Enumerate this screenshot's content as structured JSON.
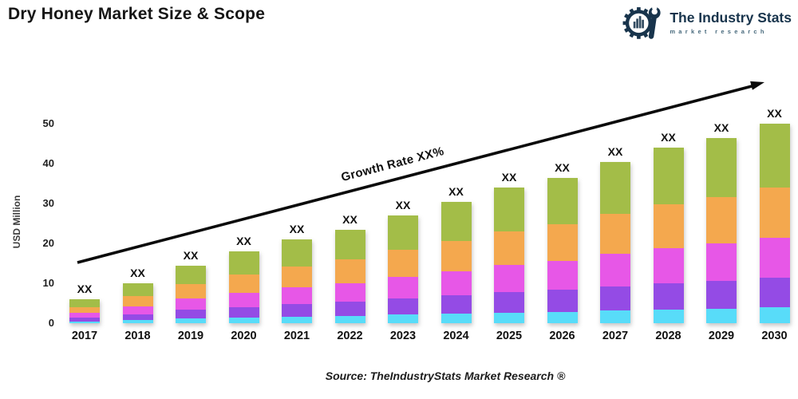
{
  "header": {
    "title": "Dry Honey Market Size & Scope",
    "logo": {
      "brand": "The Industry Stats",
      "tagline": "market research",
      "brand_color": "#18344c"
    }
  },
  "chart_data": {
    "type": "bar",
    "stacked": true,
    "title": "Dry Honey Market Size & Scope",
    "xlabel": "",
    "ylabel": "USD Million",
    "ylim": [
      0,
      50
    ],
    "yticks": [
      0,
      10,
      20,
      30,
      40,
      50
    ],
    "grid": false,
    "legend": "none",
    "bar_value_label": "XX",
    "annotation": "Growth Rate XX%",
    "categories": [
      "2017",
      "2018",
      "2019",
      "2020",
      "2021",
      "2022",
      "2023",
      "2024",
      "2025",
      "2026",
      "2027",
      "2028",
      "2029",
      "2030"
    ],
    "series": [
      {
        "name": "cyan",
        "color": "#58dcf9",
        "values": [
          0.5,
          0.8,
          1.2,
          1.4,
          1.7,
          1.9,
          2.2,
          2.4,
          2.7,
          2.9,
          3.2,
          3.5,
          3.7,
          4.0
        ]
      },
      {
        "name": "purple",
        "color": "#944be5",
        "values": [
          0.9,
          1.5,
          2.2,
          2.7,
          3.2,
          3.5,
          4.1,
          4.6,
          5.1,
          5.5,
          6.1,
          6.6,
          7.0,
          7.5
        ]
      },
      {
        "name": "magenta",
        "color": "#e757e7",
        "values": [
          1.2,
          2.0,
          2.9,
          3.6,
          4.2,
          4.7,
          5.4,
          6.1,
          6.8,
          7.3,
          8.1,
          8.8,
          9.3,
          10.0
        ]
      },
      {
        "name": "orange",
        "color": "#f4a84e",
        "values": [
          1.5,
          2.5,
          3.6,
          4.5,
          5.2,
          5.9,
          6.7,
          7.6,
          8.5,
          9.1,
          10.1,
          11.0,
          11.6,
          12.5
        ]
      },
      {
        "name": "green",
        "color": "#a3bd48",
        "values": [
          1.9,
          3.2,
          4.6,
          5.8,
          6.7,
          7.5,
          8.6,
          9.8,
          10.9,
          11.7,
          13.0,
          14.1,
          14.9,
          16.0
        ]
      }
    ],
    "totals": [
      6.0,
      10.0,
      14.5,
      18.0,
      21.0,
      23.5,
      27.0,
      30.5,
      34.0,
      36.5,
      40.5,
      44.0,
      46.5,
      50.0
    ]
  },
  "footer": {
    "source": "Source: TheIndustryStats Market Research ®"
  }
}
